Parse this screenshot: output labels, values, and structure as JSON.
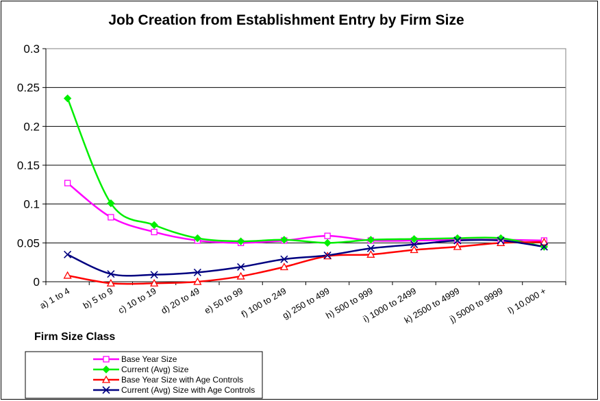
{
  "chart_data": {
    "type": "line",
    "title": "Job Creation from Establishment Entry by Firm Size",
    "xlabel": "Firm Size Class",
    "ylabel": "",
    "ylim": [
      0,
      0.3
    ],
    "yticks": [
      "0",
      "0.05",
      "0.1",
      "0.15",
      "0.2",
      "0.25",
      "0.3"
    ],
    "ytick_values": [
      0,
      0.05,
      0.1,
      0.15,
      0.2,
      0.25,
      0.3
    ],
    "grid": true,
    "legend_position": "bottom-left",
    "categories": [
      "a) 1 to 4",
      "b) 5 to 9",
      "c) 10 to 19",
      "d) 20 to 49",
      "e) 50 to 99",
      "f) 100 to 249",
      "g) 250 to 499",
      "h) 500 to 999",
      "i) 1000 to 2499",
      "k) 2500 to 4999",
      "j) 5000 to 9999",
      "l) 10,000 +"
    ],
    "series": [
      {
        "name": "Base Year Size",
        "color": "#ff00ff",
        "marker": "square-open",
        "values": [
          0.127,
          0.083,
          0.064,
          0.053,
          0.05,
          0.053,
          0.059,
          0.053,
          0.053,
          0.054,
          0.054,
          0.053
        ]
      },
      {
        "name": "Current (Avg) Size",
        "color": "#00ee00",
        "marker": "diamond",
        "values": [
          0.236,
          0.101,
          0.073,
          0.056,
          0.052,
          0.054,
          0.05,
          0.054,
          0.055,
          0.056,
          0.056,
          0.045
        ]
      },
      {
        "name": "Base Year Size with Age Controls",
        "color": "#ff0000",
        "marker": "triangle-open",
        "values": [
          0.008,
          -0.002,
          -0.002,
          0.0,
          0.007,
          0.019,
          0.033,
          0.035,
          0.041,
          0.045,
          0.05,
          0.051
        ]
      },
      {
        "name": "Current (Avg) Size with Age Controls",
        "color": "#000080",
        "marker": "x",
        "values": [
          0.035,
          0.01,
          0.009,
          0.012,
          0.019,
          0.029,
          0.034,
          0.043,
          0.048,
          0.053,
          0.053,
          0.045
        ]
      }
    ]
  }
}
